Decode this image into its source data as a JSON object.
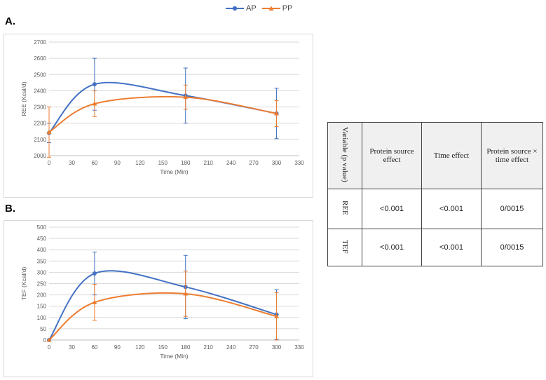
{
  "panels": {
    "a": "A.",
    "b": "B."
  },
  "legend": [
    {
      "name": "AP",
      "color": "#4472C4"
    },
    {
      "name": "PP",
      "color": "#ED7D31"
    }
  ],
  "chart_data": [
    {
      "type": "line",
      "xlabel": "Time (Min)",
      "ylabel": "REE (Kcal/d)",
      "xlim": [
        0,
        330
      ],
      "ylim": [
        2000,
        2700
      ],
      "x_ticks": [
        0,
        30,
        60,
        90,
        120,
        150,
        180,
        210,
        240,
        270,
        300,
        330
      ],
      "y_ticks": [
        2000,
        2100,
        2200,
        2300,
        2400,
        2500,
        2600,
        2700
      ],
      "grid": "horizontal",
      "smoothed": true,
      "series": [
        {
          "name": "AP",
          "color": "#4472C4",
          "x": [
            0,
            60,
            180,
            300
          ],
          "y": [
            2140,
            2440,
            2370,
            2260
          ],
          "err": [
            60,
            160,
            170,
            155
          ]
        },
        {
          "name": "PP",
          "color": "#ED7D31",
          "x": [
            0,
            60,
            180,
            300
          ],
          "y": [
            2145,
            2320,
            2360,
            2260
          ],
          "err": [
            155,
            80,
            75,
            80
          ]
        }
      ]
    },
    {
      "type": "line",
      "xlabel": "Time (Min)",
      "ylabel": "TEF (Kcal/d)",
      "xlim": [
        0,
        330
      ],
      "ylim": [
        0,
        500
      ],
      "x_ticks": [
        0,
        30,
        60,
        90,
        120,
        150,
        180,
        210,
        240,
        270,
        300,
        330
      ],
      "y_ticks": [
        0,
        50,
        100,
        150,
        200,
        250,
        300,
        350,
        400,
        450,
        500
      ],
      "grid": "horizontal",
      "smoothed": true,
      "series": [
        {
          "name": "AP",
          "color": "#4472C4",
          "x": [
            0,
            60,
            180,
            300
          ],
          "y": [
            0,
            295,
            235,
            113
          ],
          "err": [
            0,
            95,
            140,
            110
          ]
        },
        {
          "name": "PP",
          "color": "#ED7D31",
          "x": [
            0,
            60,
            180,
            300
          ],
          "y": [
            0,
            167,
            205,
            105
          ],
          "err": [
            0,
            80,
            100,
            105
          ]
        }
      ]
    }
  ],
  "table": {
    "header": [
      "Variable (p value)",
      "Protein source effect",
      "Time effect",
      "Protein source × time effect"
    ],
    "rows": [
      {
        "label": "REE",
        "values": [
          "<0.001",
          "<0.001",
          "0/0015"
        ]
      },
      {
        "label": "TEF",
        "values": [
          "<0.001",
          "<0.001",
          "0/0015"
        ]
      }
    ]
  }
}
